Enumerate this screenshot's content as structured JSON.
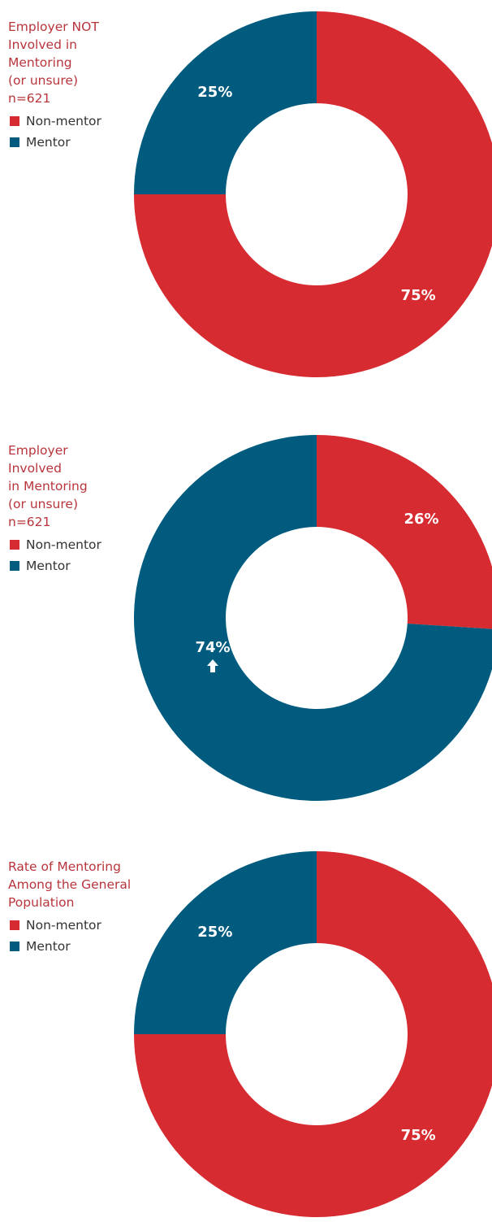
{
  "chart_data": [
    {
      "type": "donut",
      "title": "Employer NOT\nInvolved in\nMentoring\n(or unsure)\nn=621",
      "categories": [
        "Non-mentor",
        "Mentor"
      ],
      "values": [
        75,
        25
      ],
      "value_labels": [
        "75%",
        "25%"
      ],
      "colors": [
        "#d62b30",
        "#005b7f"
      ],
      "legend": "top-left"
    },
    {
      "type": "donut",
      "title": "Employer\nInvolved\nin Mentoring\n(or unsure)\nn=621",
      "categories": [
        "Non-mentor",
        "Mentor"
      ],
      "values": [
        26,
        74
      ],
      "value_labels": [
        "26%",
        "74%"
      ],
      "colors": [
        "#d62b30",
        "#005b7f"
      ],
      "legend": "top-left"
    },
    {
      "type": "donut",
      "title": "Rate of Mentoring\nAmong the General\nPopulation",
      "categories": [
        "Non-mentor",
        "Mentor"
      ],
      "values": [
        75,
        25
      ],
      "value_labels": [
        "75%",
        "25%"
      ],
      "colors": [
        "#d62b30",
        "#005b7f"
      ],
      "legend": "top-left"
    }
  ]
}
